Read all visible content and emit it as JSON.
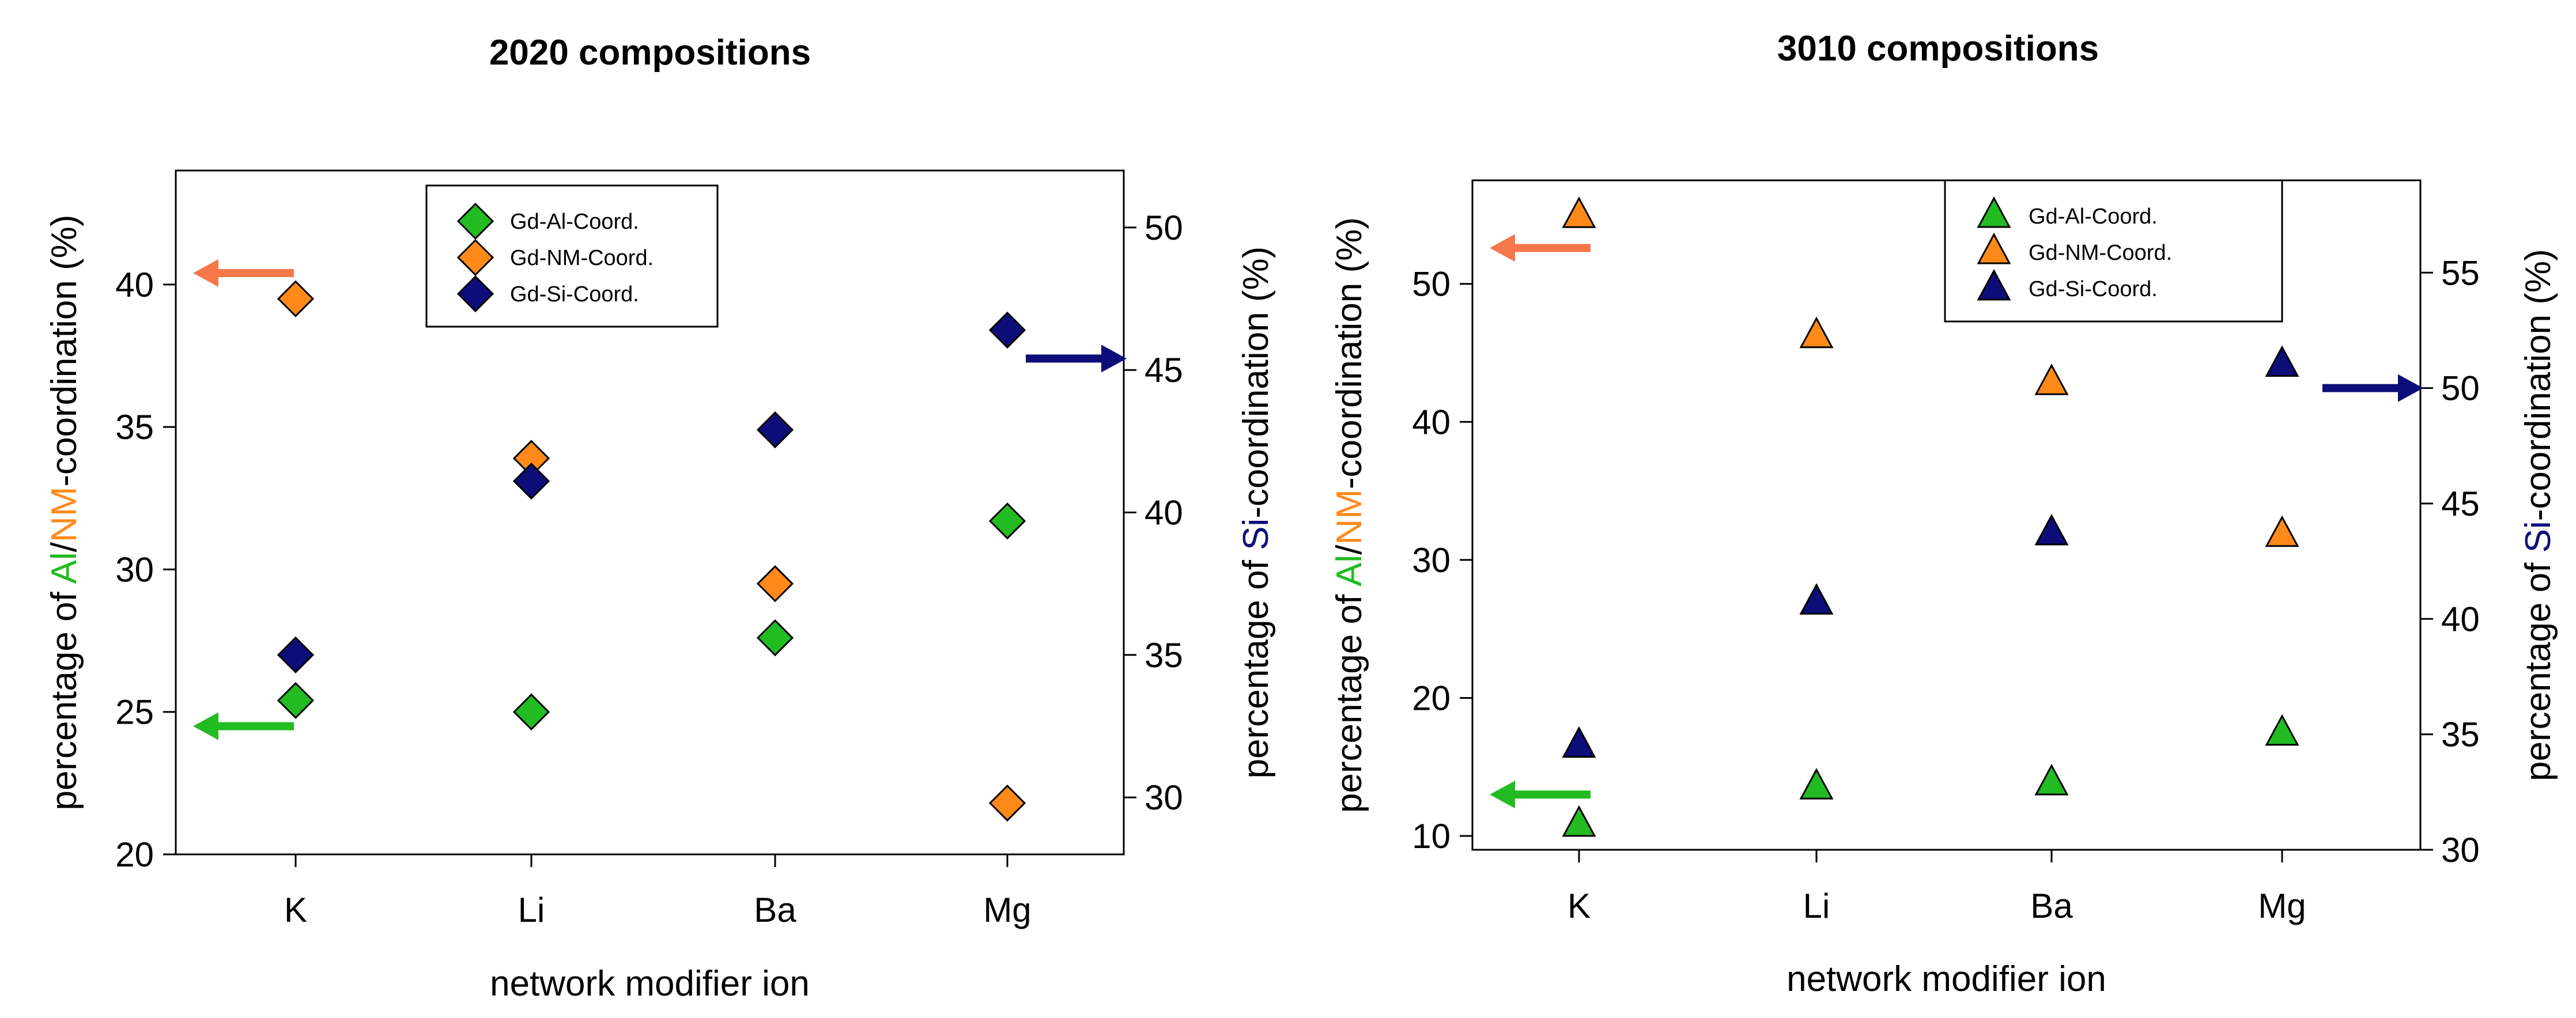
{
  "colors": {
    "al": "#22bb22",
    "nm": "#ff8a1a",
    "si": "#0d0d7a",
    "arrow_al": "#22bb22",
    "arrow_nm": "#f5784a",
    "arrow_si": "#0d0d7a"
  },
  "chart_data": [
    {
      "type": "scatter",
      "title": "2020 compositions",
      "marker": "diamond",
      "categories": [
        "K",
        "Li",
        "Ba",
        "Mg"
      ],
      "xlabel": "network modifier ion",
      "ylabel_left_parts": [
        {
          "text": "percentage of ",
          "color": "#000000"
        },
        {
          "text": "Al",
          "color": "#22bb22"
        },
        {
          "text": "/",
          "color": "#000000"
        },
        {
          "text": "NM",
          "color": "#ff8a1a"
        },
        {
          "text": "-coordination (%)",
          "color": "#000000"
        }
      ],
      "ylabel_right_parts": [
        {
          "text": "percentage of ",
          "color": "#000000"
        },
        {
          "text": "Si",
          "color": "#0d0d7a"
        },
        {
          "text": "-coordination (%)",
          "color": "#000000"
        }
      ],
      "ylim_left": [
        20,
        44
      ],
      "ylim_right": [
        28,
        52
      ],
      "yticks_left": [
        20,
        25,
        30,
        35,
        40
      ],
      "yticks_right": [
        30,
        35,
        40,
        45,
        50
      ],
      "legend_position": "top-center",
      "series": [
        {
          "name": "Gd-Al-Coord.",
          "key": "al",
          "axis": "left",
          "values": [
            25.4,
            25.0,
            27.6,
            31.7
          ]
        },
        {
          "name": "Gd-NM-Coord.",
          "key": "nm",
          "axis": "left",
          "values": [
            39.5,
            33.9,
            29.5,
            21.8
          ]
        },
        {
          "name": "Gd-Si-Coord.",
          "key": "si",
          "axis": "right",
          "values": [
            35.0,
            41.1,
            42.9,
            46.4
          ]
        }
      ],
      "arrows": [
        {
          "key": "nm",
          "direction": "left",
          "axis": "left",
          "y": 40.4
        },
        {
          "key": "al",
          "direction": "left",
          "axis": "left",
          "y": 24.5
        },
        {
          "key": "si",
          "direction": "right",
          "axis": "right",
          "y": 45.4
        }
      ]
    },
    {
      "type": "scatter",
      "title": "3010 compositions",
      "marker": "triangle",
      "categories": [
        "K",
        "Li",
        "Ba",
        "Mg"
      ],
      "xlabel": "network modifier ion",
      "ylabel_left_parts": [
        {
          "text": "percentage of ",
          "color": "#000000"
        },
        {
          "text": "Al",
          "color": "#22bb22"
        },
        {
          "text": "/",
          "color": "#000000"
        },
        {
          "text": "NM",
          "color": "#ff8a1a"
        },
        {
          "text": "-coordination (%)",
          "color": "#000000"
        }
      ],
      "ylabel_right_parts": [
        {
          "text": "percentage of ",
          "color": "#000000"
        },
        {
          "text": "Si",
          "color": "#0d0d7a"
        },
        {
          "text": "-coordination (%)",
          "color": "#000000"
        }
      ],
      "ylim_left": [
        9,
        57.5
      ],
      "ylim_right": [
        30,
        59
      ],
      "yticks_left": [
        10,
        20,
        30,
        40,
        50
      ],
      "yticks_right": [
        30,
        35,
        40,
        45,
        50,
        55
      ],
      "legend_position": "top-right",
      "series": [
        {
          "name": "Gd-Al-Coord.",
          "key": "al",
          "axis": "left",
          "values": [
            10.8,
            13.5,
            13.8,
            17.4
          ]
        },
        {
          "name": "Gd-NM-Coord.",
          "key": "nm",
          "axis": "left",
          "values": [
            54.9,
            46.2,
            42.8,
            31.8
          ]
        },
        {
          "name": "Gd-Si-Coord.",
          "key": "si",
          "axis": "right",
          "values": [
            34.5,
            40.7,
            43.7,
            51.0
          ]
        }
      ],
      "arrows": [
        {
          "key": "nm",
          "direction": "left",
          "axis": "left",
          "y": 52.6
        },
        {
          "key": "al",
          "direction": "left",
          "axis": "left",
          "y": 13.0
        },
        {
          "key": "si",
          "direction": "right",
          "axis": "right",
          "y": 50.0
        }
      ]
    }
  ]
}
